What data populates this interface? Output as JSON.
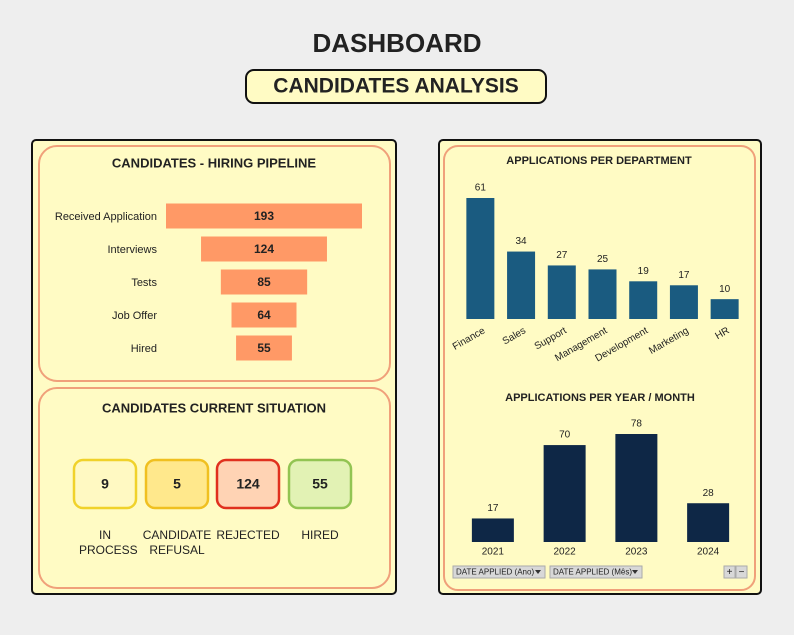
{
  "header": {
    "title": "DASHBOARD",
    "subtitle": "CANDIDATES ANALYSIS"
  },
  "chart_data": [
    {
      "type": "funnel",
      "title": "CANDIDATES - HIRING PIPELINE",
      "categories": [
        "Received Application",
        "Interviews",
        "Tests",
        "Job Offer",
        "Hired"
      ],
      "values": [
        193,
        124,
        85,
        64,
        55
      ],
      "color": "#ff9966"
    },
    {
      "type": "bar",
      "title": "APPLICATIONS PER DEPARTMENT",
      "categories": [
        "Finance",
        "Sales",
        "Support",
        "Management",
        "Development",
        "Marketing",
        "HR"
      ],
      "values": [
        61,
        34,
        27,
        25,
        19,
        17,
        10
      ],
      "color": "#1a5b80",
      "rotate_labels": true
    },
    {
      "type": "bar",
      "title": "APPLICATIONS  PER YEAR / MONTH",
      "categories": [
        "2021",
        "2022",
        "2023",
        "2024"
      ],
      "values": [
        17,
        70,
        78,
        28
      ],
      "color": "#0e2746",
      "rotate_labels": false
    }
  ],
  "situation": {
    "title": "CANDIDATES CURRENT SITUATION",
    "cards": [
      {
        "value": 9,
        "label": "IN PROCESS",
        "fill": "#fff9c2",
        "border": "#f0d22a"
      },
      {
        "value": 5,
        "label": "CANDIDATE REFUSAL",
        "fill": "#ffe88c",
        "border": "#f0c020"
      },
      {
        "value": 124,
        "label": "REJECTED",
        "fill": "#ffd3b4",
        "border": "#e0301e"
      },
      {
        "value": 55,
        "label": "HIRED",
        "fill": "#e2f2b4",
        "border": "#92c452"
      }
    ]
  },
  "filters": [
    "DATE APPLIED (Ano)",
    "DATE APPLIED (Mês)"
  ],
  "zoom_buttons": [
    "+",
    "−"
  ]
}
